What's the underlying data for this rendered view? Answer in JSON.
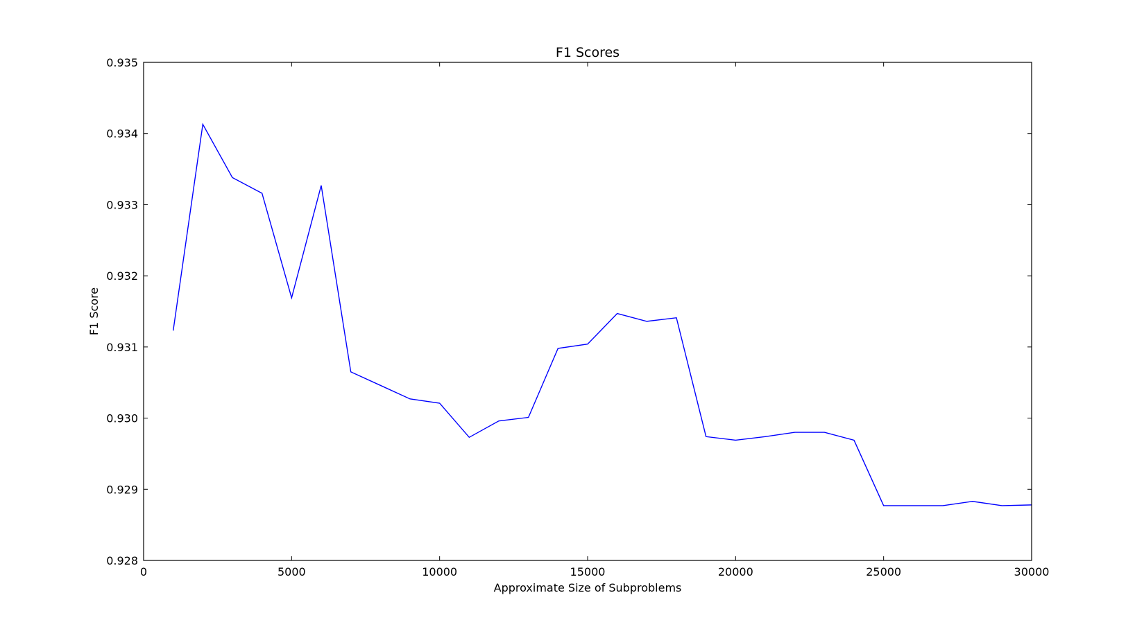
{
  "chart_data": {
    "type": "line",
    "title": "F1 Scores",
    "xlabel": "Approximate Size of Subproblems",
    "ylabel": "F1 Score",
    "xlim": [
      0,
      30000
    ],
    "ylim": [
      0.928,
      0.935
    ],
    "x_ticks": [
      0,
      5000,
      10000,
      15000,
      20000,
      25000,
      30000
    ],
    "x_tick_labels": [
      "0",
      "5000",
      "10000",
      "15000",
      "20000",
      "25000",
      "30000"
    ],
    "y_ticks": [
      0.928,
      0.929,
      0.93,
      0.931,
      0.932,
      0.933,
      0.934,
      0.935
    ],
    "y_tick_labels": [
      "0.928",
      "0.929",
      "0.930",
      "0.931",
      "0.932",
      "0.933",
      "0.934",
      "0.935"
    ],
    "grid": false,
    "series": [
      {
        "color": "#0000ff",
        "x": [
          1000,
          2000,
          3000,
          4000,
          5000,
          6000,
          7000,
          8000,
          9000,
          10000,
          11000,
          12000,
          13000,
          14000,
          15000,
          16000,
          17000,
          18000,
          19000,
          20000,
          21000,
          22000,
          23000,
          24000,
          25000,
          26000,
          27000,
          28000,
          29000,
          30000
        ],
        "y": [
          0.93123,
          0.93413,
          0.93338,
          0.93316,
          0.93169,
          0.93327,
          0.93065,
          0.93046,
          0.93027,
          0.93021,
          0.92973,
          0.92996,
          0.93001,
          0.93098,
          0.93104,
          0.93147,
          0.93136,
          0.93141,
          0.92974,
          0.92969,
          0.92974,
          0.9298,
          0.9298,
          0.92969,
          0.92877,
          0.92877,
          0.92877,
          0.92883,
          0.92877,
          0.92878
        ]
      }
    ]
  }
}
